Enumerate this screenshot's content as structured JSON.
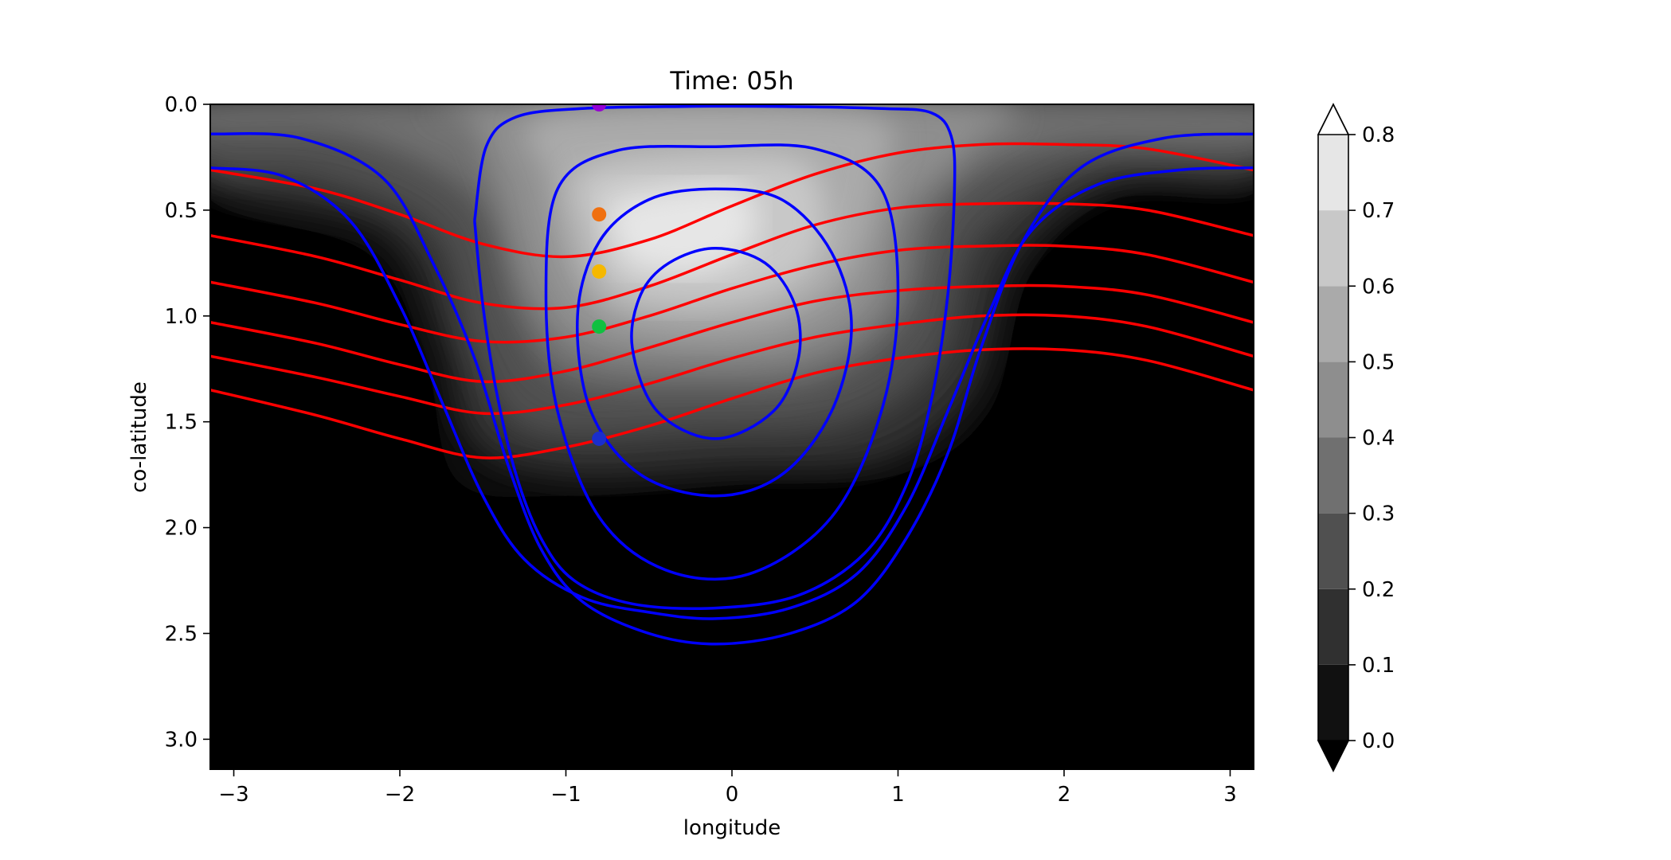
{
  "chart_data": {
    "type": "contour",
    "title": "Time: 05h",
    "xlabel": "longitude",
    "ylabel": "co-latitude",
    "xlim": [
      -3.14159,
      3.14159
    ],
    "ylim": [
      3.14159,
      0.0
    ],
    "y_inverted": true,
    "xticks": [
      -3,
      -2,
      -1,
      0,
      1,
      2,
      3
    ],
    "xtick_labels": [
      "−3",
      "−2",
      "−1",
      "0",
      "1",
      "2",
      "3"
    ],
    "yticks": [
      0.0,
      0.5,
      1.0,
      1.5,
      2.0,
      2.5,
      3.0
    ],
    "ytick_labels": [
      "0.0",
      "0.5",
      "1.0",
      "1.5",
      "2.0",
      "2.5",
      "3.0"
    ],
    "grid": false,
    "filled_contours": {
      "colormap": "greys",
      "levels": [
        0.0,
        0.1,
        0.2,
        0.3,
        0.4,
        0.5,
        0.6,
        0.7,
        0.8
      ],
      "level_colors": [
        "#111111",
        "#303030",
        "#505050",
        "#707070",
        "#8e8e8e",
        "#aaaaaa",
        "#c8c8c8",
        "#e6e6e6"
      ],
      "extend": "both",
      "under_color": "#000000",
      "over_color": "#ffffff",
      "peak": {
        "x": -0.35,
        "y": 0.62,
        "value": 0.85
      }
    },
    "colorbar": {
      "tick_values": [
        0.0,
        0.1,
        0.2,
        0.3,
        0.4,
        0.5,
        0.6,
        0.7,
        0.8
      ],
      "tick_labels": [
        "0.0",
        "0.1",
        "0.2",
        "0.3",
        "0.4",
        "0.5",
        "0.6",
        "0.7",
        "0.8"
      ]
    },
    "red_contours": {
      "color": "#ff0000",
      "lines": [
        {
          "x": [
            -3.14,
            -2.5,
            -2.0,
            -1.5,
            -1.0,
            -0.5,
            0.0,
            0.5,
            1.0,
            1.5,
            2.0,
            2.5,
            3.14
          ],
          "y": [
            0.31,
            0.4,
            0.52,
            0.66,
            0.72,
            0.64,
            0.48,
            0.33,
            0.23,
            0.19,
            0.19,
            0.21,
            0.31
          ]
        },
        {
          "x": [
            -3.14,
            -2.5,
            -2.0,
            -1.5,
            -1.0,
            -0.5,
            0.0,
            0.5,
            1.0,
            1.5,
            2.0,
            2.5,
            3.14
          ],
          "y": [
            0.62,
            0.72,
            0.83,
            0.94,
            0.96,
            0.86,
            0.71,
            0.57,
            0.49,
            0.47,
            0.47,
            0.5,
            0.62
          ]
        },
        {
          "x": [
            -3.14,
            -2.5,
            -2.0,
            -1.5,
            -1.0,
            -0.5,
            0.0,
            0.5,
            1.0,
            1.5,
            2.0,
            2.5,
            3.14
          ],
          "y": [
            0.84,
            0.94,
            1.04,
            1.12,
            1.1,
            1.0,
            0.87,
            0.76,
            0.69,
            0.67,
            0.67,
            0.71,
            0.84
          ]
        },
        {
          "x": [
            -3.14,
            -2.5,
            -2.0,
            -1.5,
            -1.0,
            -0.5,
            0.0,
            0.5,
            1.0,
            1.5,
            2.0,
            2.5,
            3.14
          ],
          "y": [
            1.03,
            1.13,
            1.23,
            1.31,
            1.26,
            1.15,
            1.03,
            0.93,
            0.88,
            0.86,
            0.86,
            0.9,
            1.03
          ]
        },
        {
          "x": [
            -3.14,
            -2.5,
            -2.0,
            -1.5,
            -1.0,
            -0.5,
            0.0,
            0.5,
            1.0,
            1.5,
            2.0,
            2.5,
            3.14
          ],
          "y": [
            1.19,
            1.29,
            1.38,
            1.46,
            1.42,
            1.32,
            1.2,
            1.1,
            1.04,
            1.0,
            1.0,
            1.05,
            1.19
          ]
        },
        {
          "x": [
            -3.14,
            -2.5,
            -2.0,
            -1.5,
            -1.0,
            -0.5,
            0.0,
            0.5,
            1.0,
            1.5,
            2.0,
            2.5,
            3.14
          ],
          "y": [
            1.35,
            1.47,
            1.58,
            1.67,
            1.62,
            1.52,
            1.39,
            1.27,
            1.2,
            1.16,
            1.16,
            1.21,
            1.35
          ]
        }
      ]
    },
    "blue_contours": {
      "color": "#0000ff",
      "lines": [
        {
          "closed": true,
          "x": [
            -0.1,
            0.2,
            0.38,
            0.4,
            0.25,
            -0.1,
            -0.45,
            -0.6,
            -0.55,
            -0.38,
            -0.1
          ],
          "y": [
            0.68,
            0.75,
            0.95,
            1.2,
            1.45,
            1.58,
            1.45,
            1.15,
            0.9,
            0.75,
            0.68
          ]
        },
        {
          "closed": true,
          "x": [
            -0.1,
            0.3,
            0.6,
            0.72,
            0.6,
            0.3,
            -0.1,
            -0.55,
            -0.85,
            -0.93,
            -0.8,
            -0.5,
            -0.1
          ],
          "y": [
            0.4,
            0.45,
            0.7,
            1.05,
            1.45,
            1.75,
            1.85,
            1.75,
            1.45,
            1.0,
            0.65,
            0.45,
            0.4
          ]
        },
        {
          "closed": true,
          "x": [
            -0.1,
            0.5,
            0.9,
            1.0,
            0.9,
            0.6,
            0.1,
            -0.4,
            -0.8,
            -1.05,
            -1.12,
            -1.05,
            -0.7,
            -0.1
          ],
          "y": [
            0.2,
            0.21,
            0.4,
            0.9,
            1.45,
            1.95,
            2.22,
            2.2,
            1.95,
            1.45,
            0.9,
            0.4,
            0.22,
            0.2
          ]
        }
      ],
      "open_lines": [
        {
          "x": [
            -1.55,
            -1.5,
            -1.42,
            -1.3,
            -1.15,
            -0.95,
            -0.6,
            -0.1,
            0.4,
            0.8,
            1.05,
            1.2,
            1.3,
            1.34,
            1.32,
            1.2,
            0.9,
            0.3,
            -0.3,
            -0.9,
            -1.3,
            -1.48,
            -1.55
          ],
          "y": [
            0.55,
            0.95,
            1.35,
            1.75,
            2.05,
            2.25,
            2.36,
            2.38,
            2.32,
            2.12,
            1.8,
            1.4,
            0.9,
            0.4,
            0.15,
            0.04,
            0.02,
            0.01,
            0.01,
            0.02,
            0.06,
            0.2,
            0.55
          ]
        },
        {
          "x": [
            -3.14,
            -2.6,
            -2.1,
            -1.8,
            -1.55,
            -1.35,
            -1.15,
            -0.9,
            -0.5,
            -0.1,
            0.35,
            0.75,
            1.05,
            1.3,
            1.5,
            1.75,
            2.1,
            2.6,
            3.14
          ],
          "y": [
            0.14,
            0.16,
            0.35,
            0.75,
            1.2,
            1.7,
            2.1,
            2.35,
            2.5,
            2.55,
            2.5,
            2.35,
            2.05,
            1.65,
            1.15,
            0.65,
            0.3,
            0.16,
            0.14
          ]
        },
        {
          "x": [
            -3.14,
            -2.7,
            -2.3,
            -2.0,
            -1.75,
            -1.5,
            -1.25,
            -0.9,
            -0.5,
            -0.1,
            0.35,
            0.75,
            1.05,
            1.3,
            1.55,
            1.8,
            2.2,
            2.7,
            3.14
          ],
          "y": [
            0.3,
            0.34,
            0.55,
            0.95,
            1.4,
            1.85,
            2.15,
            2.33,
            2.4,
            2.43,
            2.38,
            2.22,
            1.9,
            1.45,
            0.98,
            0.6,
            0.38,
            0.31,
            0.3
          ]
        }
      ]
    },
    "markers": [
      {
        "name": "purple",
        "x": -0.8,
        "y": 0.0,
        "color": "#9400d3"
      },
      {
        "name": "orange",
        "x": -0.8,
        "y": 0.52,
        "color": "#f07010"
      },
      {
        "name": "yellow",
        "x": -0.8,
        "y": 0.79,
        "color": "#f5b800"
      },
      {
        "name": "green",
        "x": -0.8,
        "y": 1.05,
        "color": "#10c040"
      },
      {
        "name": "blue",
        "x": -0.8,
        "y": 1.58,
        "color": "#1a2ecc"
      }
    ]
  }
}
